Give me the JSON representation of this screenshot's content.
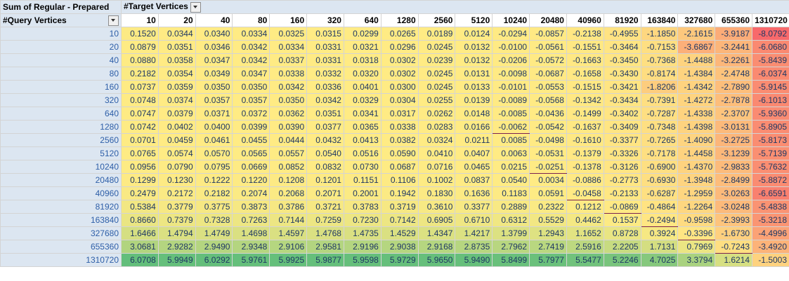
{
  "pivot": {
    "title": "Sum of Regular - Prepared",
    "col_field": "#Target Vertices",
    "row_field": "#Query Vertices",
    "col_headers": [
      "10",
      "20",
      "40",
      "80",
      "160",
      "320",
      "640",
      "1280",
      "2560",
      "5120",
      "10240",
      "20480",
      "40960",
      "81920",
      "163840",
      "327680",
      "655360",
      "1310720"
    ],
    "rows": [
      {
        "label": "10",
        "values": [
          "0.1520",
          "0.0344",
          "0.0340",
          "0.0334",
          "0.0325",
          "0.0315",
          "0.0299",
          "0.0265",
          "0.0189",
          "0.0124",
          "-0.0294",
          "-0.0857",
          "-0.2138",
          "-0.4955",
          "-1.1850",
          "-2.1615",
          "-3.9187",
          "-8.0792"
        ]
      },
      {
        "label": "20",
        "values": [
          "0.0879",
          "0.0351",
          "0.0346",
          "0.0342",
          "0.0334",
          "0.0331",
          "0.0321",
          "0.0296",
          "0.0245",
          "0.0132",
          "-0.0100",
          "-0.0561",
          "-0.1551",
          "-0.3464",
          "-0.7153",
          "-3.6867",
          "-3.2441",
          "-6.0680"
        ]
      },
      {
        "label": "40",
        "values": [
          "0.0880",
          "0.0358",
          "0.0347",
          "0.0342",
          "0.0337",
          "0.0331",
          "0.0318",
          "0.0302",
          "0.0239",
          "0.0132",
          "-0.0206",
          "-0.0572",
          "-0.1663",
          "-0.3450",
          "-0.7368",
          "-1.4488",
          "-3.2261",
          "-5.8439"
        ]
      },
      {
        "label": "80",
        "values": [
          "0.2182",
          "0.0354",
          "0.0349",
          "0.0347",
          "0.0338",
          "0.0332",
          "0.0320",
          "0.0302",
          "0.0245",
          "0.0131",
          "-0.0098",
          "-0.0687",
          "-0.1658",
          "-0.3430",
          "-0.8174",
          "-1.4384",
          "-2.4748",
          "-6.0374"
        ]
      },
      {
        "label": "160",
        "values": [
          "0.0737",
          "0.0359",
          "0.0350",
          "0.0350",
          "0.0342",
          "0.0336",
          "0.0401",
          "0.0300",
          "0.0245",
          "0.0133",
          "-0.0101",
          "-0.0553",
          "-0.1515",
          "-0.3421",
          "-1.8206",
          "-1.4342",
          "-2.7890",
          "-5.9145"
        ]
      },
      {
        "label": "320",
        "values": [
          "0.0748",
          "0.0374",
          "0.0357",
          "0.0357",
          "0.0350",
          "0.0342",
          "0.0329",
          "0.0304",
          "0.0255",
          "0.0139",
          "-0.0089",
          "-0.0568",
          "-0.1342",
          "-0.3434",
          "-0.7391",
          "-1.4272",
          "-2.7878",
          "-6.1013"
        ]
      },
      {
        "label": "640",
        "values": [
          "0.0747",
          "0.0379",
          "0.0371",
          "0.0372",
          "0.0362",
          "0.0351",
          "0.0341",
          "0.0317",
          "0.0262",
          "0.0148",
          "-0.0085",
          "-0.0436",
          "-0.1499",
          "-0.3402",
          "-0.7287",
          "-1.4338",
          "-2.3707",
          "-5.9360"
        ]
      },
      {
        "label": "1280",
        "values": [
          "0.0742",
          "0.0402",
          "0.0400",
          "0.0399",
          "0.0390",
          "0.0377",
          "0.0365",
          "0.0338",
          "0.0283",
          "0.0166",
          "-0.0062",
          "-0.0542",
          "-0.1637",
          "-0.3409",
          "-0.7348",
          "-1.4398",
          "-3.0131",
          "-5.8905"
        ]
      },
      {
        "label": "2560",
        "values": [
          "0.0701",
          "0.0459",
          "0.0461",
          "0.0455",
          "0.0444",
          "0.0432",
          "0.0413",
          "0.0382",
          "0.0324",
          "0.0211",
          "0.0085",
          "-0.0498",
          "-0.1610",
          "-0.3377",
          "-0.7265",
          "-1.4090",
          "-3.2725",
          "-5.8173"
        ]
      },
      {
        "label": "5120",
        "values": [
          "0.0765",
          "0.0574",
          "0.0570",
          "0.0565",
          "0.0557",
          "0.0540",
          "0.0516",
          "0.0590",
          "0.0410",
          "0.0407",
          "0.0063",
          "-0.0531",
          "-0.1379",
          "-0.3326",
          "-0.7178",
          "-1.4458",
          "-3.1239",
          "-5.7139"
        ]
      },
      {
        "label": "10240",
        "values": [
          "0.0956",
          "0.0790",
          "0.0795",
          "0.0669",
          "0.0852",
          "0.0832",
          "0.0730",
          "0.0687",
          "0.0716",
          "0.0465",
          "0.0215",
          "-0.0251",
          "-0.1378",
          "-0.3126",
          "-0.6900",
          "-1.4370",
          "-2.9833",
          "-5.7632"
        ]
      },
      {
        "label": "20480",
        "values": [
          "0.1299",
          "0.1230",
          "0.1222",
          "0.1220",
          "0.1208",
          "0.1201",
          "0.1151",
          "0.1106",
          "0.1002",
          "0.0837",
          "0.0540",
          "0.0034",
          "-0.0886",
          "-0.2773",
          "-0.6930",
          "-1.3948",
          "-2.8499",
          "-5.8872"
        ]
      },
      {
        "label": "40960",
        "values": [
          "0.2479",
          "0.2172",
          "0.2182",
          "0.2074",
          "0.2068",
          "0.2071",
          "0.2001",
          "0.1942",
          "0.1830",
          "0.1636",
          "0.1183",
          "0.0591",
          "-0.0458",
          "-0.2133",
          "-0.6287",
          "-1.2959",
          "-3.0263",
          "-6.6591"
        ]
      },
      {
        "label": "81920",
        "values": [
          "0.5384",
          "0.3779",
          "0.3775",
          "0.3873",
          "0.3786",
          "0.3721",
          "0.3783",
          "0.3719",
          "0.3610",
          "0.3377",
          "0.2889",
          "0.2322",
          "0.1212",
          "-0.0869",
          "-0.4864",
          "-1.2264",
          "-3.0248",
          "-5.4838"
        ]
      },
      {
        "label": "163840",
        "values": [
          "0.8660",
          "0.7379",
          "0.7328",
          "0.7263",
          "0.7144",
          "0.7259",
          "0.7230",
          "0.7142",
          "0.6905",
          "0.6710",
          "0.6312",
          "0.5529",
          "0.4462",
          "0.1537",
          "-0.2494",
          "-0.9598",
          "-2.3993",
          "-5.3218"
        ]
      },
      {
        "label": "327680",
        "values": [
          "1.6466",
          "1.4794",
          "1.4749",
          "1.4698",
          "1.4597",
          "1.4768",
          "1.4735",
          "1.4529",
          "1.4347",
          "1.4217",
          "1.3799",
          "1.2943",
          "1.1652",
          "0.8728",
          "0.3924",
          "-0.3396",
          "-1.6730",
          "-4.4996"
        ]
      },
      {
        "label": "655360",
        "values": [
          "3.0681",
          "2.9282",
          "2.9490",
          "2.9348",
          "2.9106",
          "2.9581",
          "2.9196",
          "2.9038",
          "2.9168",
          "2.8735",
          "2.7962",
          "2.7419",
          "2.5916",
          "2.2205",
          "1.7131",
          "0.7969",
          "-0.7243",
          "-3.4920"
        ]
      },
      {
        "label": "1310720",
        "values": [
          "6.0708",
          "5.9949",
          "6.0292",
          "5.9761",
          "5.9925",
          "5.9877",
          "5.9598",
          "5.9729",
          "5.9650",
          "5.9490",
          "5.8499",
          "5.7977",
          "5.5477",
          "5.2246",
          "4.7025",
          "3.3794",
          "1.6214",
          "-1.5003"
        ]
      }
    ],
    "boundary_color": "#7b2050",
    "scale_colors": {
      "green": "#63be7b",
      "yellow": "#ffeb84",
      "red": "#f8696b"
    }
  }
}
